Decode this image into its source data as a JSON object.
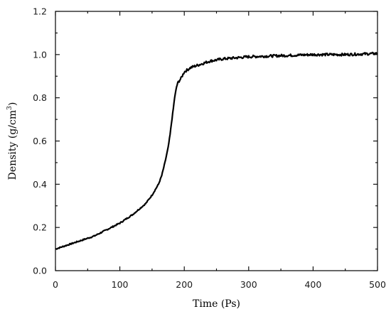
{
  "chart_data": {
    "type": "line",
    "xlabel": "Time (Ps)",
    "ylabel": "Density (g/cm3)",
    "ylabel_parts": {
      "main": "Density (g/cm",
      "sup": "3",
      "close": ")"
    },
    "xlim": [
      0,
      500
    ],
    "ylim": [
      0.0,
      1.2
    ],
    "x_ticks": [
      "0",
      "100",
      "200",
      "300",
      "400",
      "500"
    ],
    "x_tick_values": [
      0,
      100,
      200,
      300,
      400,
      500
    ],
    "y_ticks": [
      "0.0",
      "0.2",
      "0.4",
      "0.6",
      "0.8",
      "1.0",
      "1.2"
    ],
    "y_tick_values": [
      0.0,
      0.2,
      0.4,
      0.6,
      0.8,
      1.0,
      1.2
    ],
    "grid": false,
    "legend": "none",
    "series": [
      {
        "color": "#000000",
        "x": [
          0,
          20,
          40,
          60,
          80,
          100,
          120,
          140,
          150,
          160,
          165,
          170,
          175,
          178,
          180,
          183,
          185,
          188,
          190,
          195,
          200,
          210,
          220,
          240,
          260,
          280,
          300,
          350,
          400,
          450,
          500
        ],
        "y": [
          0.1,
          0.12,
          0.14,
          0.16,
          0.19,
          0.22,
          0.26,
          0.31,
          0.35,
          0.4,
          0.44,
          0.5,
          0.57,
          0.63,
          0.68,
          0.75,
          0.8,
          0.85,
          0.87,
          0.89,
          0.92,
          0.94,
          0.95,
          0.97,
          0.98,
          0.985,
          0.99,
          0.995,
          1.0,
          1.0,
          1.005
        ]
      }
    ]
  }
}
